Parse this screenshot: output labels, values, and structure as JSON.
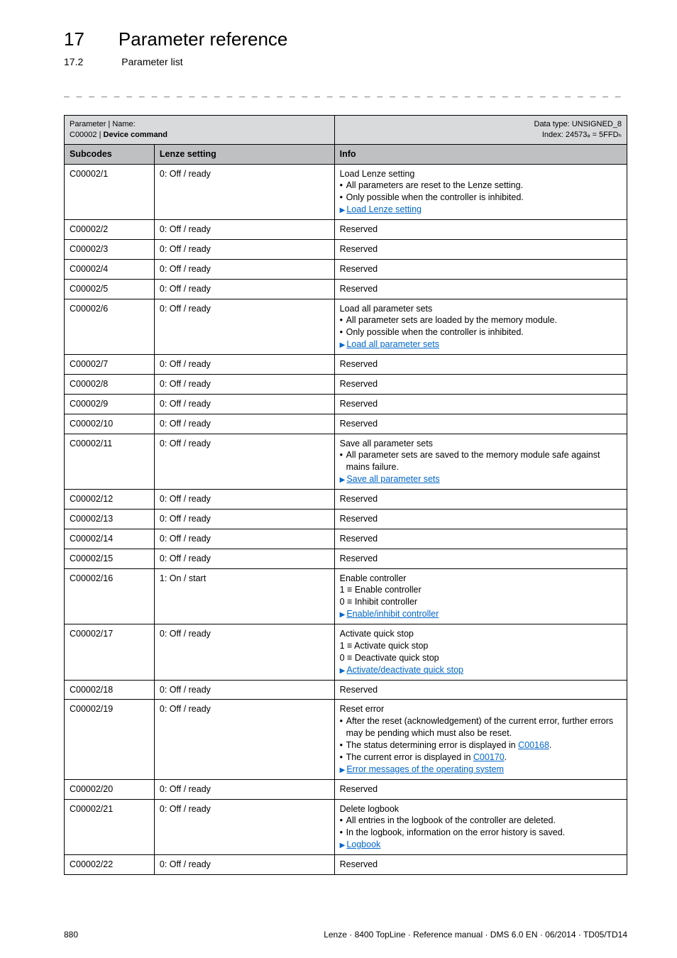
{
  "header": {
    "chapter_num": "17",
    "chapter_title": "Parameter reference",
    "section_num": "17.2",
    "section_title": "Parameter list",
    "dashes": "_ _ _ _ _ _ _ _ _ _ _ _ _ _ _ _ _ _ _ _ _ _ _ _ _ _ _ _ _ _ _ _ _ _ _ _ _ _ _ _ _ _ _ _ _ _ _ _ _ _ _ _ _ _ _ _ _ _ _ _ _ _ _ _"
  },
  "table": {
    "meta": {
      "left_line1": "Parameter | Name:",
      "left_line2_prefix": "C00002 | ",
      "left_line2_bold": "Device command",
      "right_line1": "Data type: UNSIGNED_8",
      "right_line2": "Index: 24573ₔ = 5FFDₕ"
    },
    "columns": {
      "c1": "Subcodes",
      "c2": "Lenze setting",
      "c3": "Info"
    },
    "rows": [
      {
        "sub": "C00002/1",
        "setting": "0: Off / ready",
        "info": [
          {
            "t": "plain",
            "text": "Load Lenze setting"
          },
          {
            "t": "b",
            "text": "All parameters are reset to the Lenze setting."
          },
          {
            "t": "b",
            "text": "Only possible when the controller is inhibited."
          },
          {
            "t": "tri",
            "link": "Load Lenze setting"
          }
        ]
      },
      {
        "sub": "C00002/2",
        "setting": "0: Off / ready",
        "info": [
          {
            "t": "plain",
            "text": "Reserved"
          }
        ]
      },
      {
        "sub": "C00002/3",
        "setting": "0: Off / ready",
        "info": [
          {
            "t": "plain",
            "text": "Reserved"
          }
        ]
      },
      {
        "sub": "C00002/4",
        "setting": "0: Off / ready",
        "info": [
          {
            "t": "plain",
            "text": "Reserved"
          }
        ]
      },
      {
        "sub": "C00002/5",
        "setting": "0: Off / ready",
        "info": [
          {
            "t": "plain",
            "text": "Reserved"
          }
        ]
      },
      {
        "sub": "C00002/6",
        "setting": "0: Off / ready",
        "info": [
          {
            "t": "plain",
            "text": "Load all parameter sets"
          },
          {
            "t": "b",
            "text": "All parameter sets are loaded by the memory module."
          },
          {
            "t": "b",
            "text": "Only possible when the controller is inhibited."
          },
          {
            "t": "tri",
            "link": "Load all parameter sets"
          }
        ]
      },
      {
        "sub": "C00002/7",
        "setting": "0: Off / ready",
        "info": [
          {
            "t": "plain",
            "text": "Reserved"
          }
        ]
      },
      {
        "sub": "C00002/8",
        "setting": "0: Off / ready",
        "info": [
          {
            "t": "plain",
            "text": "Reserved"
          }
        ]
      },
      {
        "sub": "C00002/9",
        "setting": "0: Off / ready",
        "info": [
          {
            "t": "plain",
            "text": "Reserved"
          }
        ]
      },
      {
        "sub": "C00002/10",
        "setting": "0: Off / ready",
        "info": [
          {
            "t": "plain",
            "text": "Reserved"
          }
        ]
      },
      {
        "sub": "C00002/11",
        "setting": "0: Off / ready",
        "info": [
          {
            "t": "plain",
            "text": "Save all parameter sets"
          },
          {
            "t": "b",
            "text": "All parameter sets are saved to the memory module safe against mains failure."
          },
          {
            "t": "tri",
            "link": "Save all parameter sets"
          }
        ]
      },
      {
        "sub": "C00002/12",
        "setting": "0: Off / ready",
        "info": [
          {
            "t": "plain",
            "text": "Reserved"
          }
        ]
      },
      {
        "sub": "C00002/13",
        "setting": "0: Off / ready",
        "info": [
          {
            "t": "plain",
            "text": "Reserved"
          }
        ]
      },
      {
        "sub": "C00002/14",
        "setting": "0: Off / ready",
        "info": [
          {
            "t": "plain",
            "text": "Reserved"
          }
        ]
      },
      {
        "sub": "C00002/15",
        "setting": "0: Off / ready",
        "info": [
          {
            "t": "plain",
            "text": "Reserved"
          }
        ]
      },
      {
        "sub": "C00002/16",
        "setting": "1: On / start",
        "info": [
          {
            "t": "plain",
            "text": "Enable controller"
          },
          {
            "t": "plain",
            "text": "1 ≡ Enable controller"
          },
          {
            "t": "plain",
            "text": "0 ≡ Inhibit controller"
          },
          {
            "t": "tri",
            "link": "Enable/inhibit controller"
          }
        ]
      },
      {
        "sub": "C00002/17",
        "setting": "0: Off / ready",
        "info": [
          {
            "t": "plain",
            "text": "Activate quick stop"
          },
          {
            "t": "plain",
            "text": "1 ≡ Activate quick stop"
          },
          {
            "t": "plain",
            "text": "0 ≡ Deactivate quick stop"
          },
          {
            "t": "tri",
            "link": "Activate/deactivate quick stop"
          }
        ]
      },
      {
        "sub": "C00002/18",
        "setting": "0: Off / ready",
        "info": [
          {
            "t": "plain",
            "text": "Reserved"
          }
        ]
      },
      {
        "sub": "C00002/19",
        "setting": "0: Off / ready",
        "info": [
          {
            "t": "plain",
            "text": "Reset error"
          },
          {
            "t": "b",
            "text": "After the reset (acknowledgement) of the current error, further errors may be pending which must also be reset."
          },
          {
            "t": "b_text_link",
            "pre": "The status determining error is displayed in ",
            "link": "C00168",
            "post": "."
          },
          {
            "t": "b_text_link",
            "pre": "The current error is displayed in ",
            "link": "C00170",
            "post": "."
          },
          {
            "t": "tri",
            "link": "Error messages of the operating system"
          }
        ]
      },
      {
        "sub": "C00002/20",
        "setting": "0: Off / ready",
        "info": [
          {
            "t": "plain",
            "text": "Reserved"
          }
        ]
      },
      {
        "sub": "C00002/21",
        "setting": "0: Off / ready",
        "info": [
          {
            "t": "plain",
            "text": "Delete logbook"
          },
          {
            "t": "b",
            "text": "All entries in the logbook of the controller are deleted."
          },
          {
            "t": "b",
            "text": "In the logbook, information on the error history is saved."
          },
          {
            "t": "tri",
            "link": "Logbook"
          }
        ]
      },
      {
        "sub": "C00002/22",
        "setting": "0: Off / ready",
        "info": [
          {
            "t": "plain",
            "text": "Reserved"
          }
        ]
      }
    ]
  },
  "footer": {
    "page": "880",
    "right": "Lenze · 8400 TopLine · Reference manual · DMS 6.0 EN · 06/2014 · TD05/TD14"
  }
}
